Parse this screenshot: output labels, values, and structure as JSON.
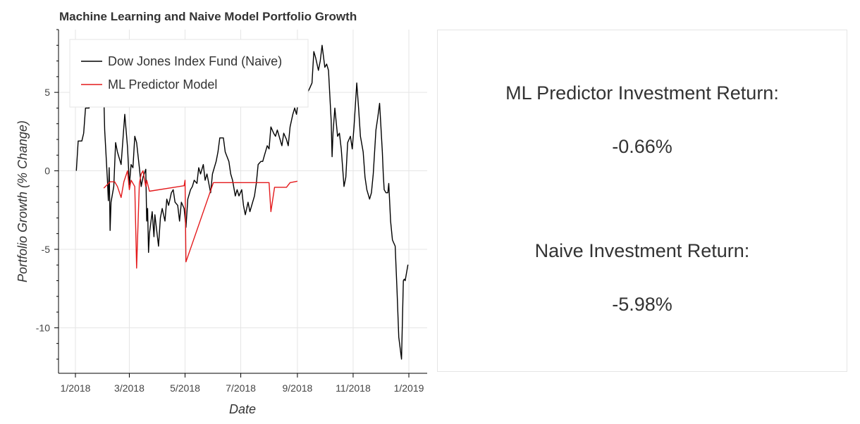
{
  "chart_data": {
    "type": "line",
    "title": "Machine Learning and Naive Model Portfolio Growth",
    "xlabel": "Date",
    "ylabel": "Portfolio Growth (% Change)",
    "xlim": [
      "2018-01-01",
      "2019-01-01"
    ],
    "ylim": [
      -12.9,
      9
    ],
    "x_ticks": [
      {
        "date": "2018-01-01",
        "label": "1/2018"
      },
      {
        "date": "2018-03-01",
        "label": "3/2018"
      },
      {
        "date": "2018-05-01",
        "label": "5/2018"
      },
      {
        "date": "2018-07-01",
        "label": "7/2018"
      },
      {
        "date": "2018-09-01",
        "label": "9/2018"
      },
      {
        "date": "2018-11-01",
        "label": "11/2018"
      },
      {
        "date": "2019-01-01",
        "label": "1/2019"
      }
    ],
    "y_ticks": [
      {
        "value": 5,
        "label": "5"
      },
      {
        "value": 0,
        "label": "0"
      },
      {
        "value": -5,
        "label": "-5"
      },
      {
        "value": -10,
        "label": "-10"
      }
    ],
    "grid": true,
    "legend_position": "top-left",
    "series": [
      {
        "name": "Dow Jones Index Fund (Naive)",
        "color": "#000000",
        "points": [
          [
            "2018-01-02",
            0.0
          ],
          [
            "2018-01-04",
            1.9
          ],
          [
            "2018-01-08",
            1.9
          ],
          [
            "2018-01-10",
            2.4
          ],
          [
            "2018-01-12",
            4.0
          ],
          [
            "2018-01-16",
            4.0
          ],
          [
            "2018-01-18",
            5.6
          ],
          [
            "2018-01-22",
            7.1
          ],
          [
            "2018-01-26",
            6.7
          ],
          [
            "2018-01-31",
            7.3
          ],
          [
            "2018-02-02",
            2.6
          ],
          [
            "2018-02-05",
            -0.6
          ],
          [
            "2018-02-06",
            -1.9
          ],
          [
            "2018-02-07",
            0.2
          ],
          [
            "2018-02-08",
            -3.8
          ],
          [
            "2018-02-09",
            -2.0
          ],
          [
            "2018-02-12",
            -1.0
          ],
          [
            "2018-02-14",
            1.8
          ],
          [
            "2018-02-16",
            1.2
          ],
          [
            "2018-02-20",
            0.4
          ],
          [
            "2018-02-22",
            2.0
          ],
          [
            "2018-02-24",
            3.6
          ],
          [
            "2018-02-27",
            1.5
          ],
          [
            "2018-03-01",
            -0.9
          ],
          [
            "2018-03-03",
            0.4
          ],
          [
            "2018-03-05",
            0.2
          ],
          [
            "2018-03-07",
            2.2
          ],
          [
            "2018-03-09",
            1.8
          ],
          [
            "2018-03-12",
            0.2
          ],
          [
            "2018-03-14",
            -1.0
          ],
          [
            "2018-03-16",
            -0.4
          ],
          [
            "2018-03-19",
            0.1
          ],
          [
            "2018-03-20",
            -3.2
          ],
          [
            "2018-03-21",
            -2.4
          ],
          [
            "2018-03-22",
            -5.2
          ],
          [
            "2018-03-23",
            -4.0
          ],
          [
            "2018-03-26",
            -2.6
          ],
          [
            "2018-03-28",
            -4.2
          ],
          [
            "2018-03-29",
            -2.8
          ],
          [
            "2018-04-02",
            -4.8
          ],
          [
            "2018-04-04",
            -3.0
          ],
          [
            "2018-04-06",
            -2.4
          ],
          [
            "2018-04-09",
            -3.2
          ],
          [
            "2018-04-11",
            -1.8
          ],
          [
            "2018-04-13",
            -2.2
          ],
          [
            "2018-04-16",
            -1.4
          ],
          [
            "2018-04-18",
            -1.2
          ],
          [
            "2018-04-20",
            -2.0
          ],
          [
            "2018-04-23",
            -2.2
          ],
          [
            "2018-04-25",
            -3.2
          ],
          [
            "2018-04-27",
            -2.0
          ],
          [
            "2018-04-30",
            -2.4
          ],
          [
            "2018-05-02",
            -3.6
          ],
          [
            "2018-05-04",
            -1.8
          ],
          [
            "2018-05-07",
            -1.2
          ],
          [
            "2018-05-09",
            -1.0
          ],
          [
            "2018-05-11",
            -0.6
          ],
          [
            "2018-05-14",
            -0.8
          ],
          [
            "2018-05-16",
            0.2
          ],
          [
            "2018-05-18",
            -0.2
          ],
          [
            "2018-05-21",
            0.4
          ],
          [
            "2018-05-23",
            -0.6
          ],
          [
            "2018-05-25",
            -0.2
          ],
          [
            "2018-05-29",
            -1.4
          ],
          [
            "2018-05-31",
            -0.2
          ],
          [
            "2018-06-04",
            0.6
          ],
          [
            "2018-06-06",
            1.2
          ],
          [
            "2018-06-08",
            2.1
          ],
          [
            "2018-06-12",
            2.1
          ],
          [
            "2018-06-14",
            1.2
          ],
          [
            "2018-06-18",
            0.6
          ],
          [
            "2018-06-20",
            -0.2
          ],
          [
            "2018-06-22",
            -0.6
          ],
          [
            "2018-06-25",
            -1.6
          ],
          [
            "2018-06-27",
            -1.2
          ],
          [
            "2018-06-29",
            -1.6
          ],
          [
            "2018-07-02",
            -1.2
          ],
          [
            "2018-07-04",
            -2.2
          ],
          [
            "2018-07-06",
            -2.8
          ],
          [
            "2018-07-09",
            -2.0
          ],
          [
            "2018-07-11",
            -2.6
          ],
          [
            "2018-07-13",
            -2.2
          ],
          [
            "2018-07-16",
            -1.6
          ],
          [
            "2018-07-18",
            -0.8
          ],
          [
            "2018-07-20",
            0.4
          ],
          [
            "2018-07-23",
            0.6
          ],
          [
            "2018-07-25",
            0.6
          ],
          [
            "2018-07-27",
            1.0
          ],
          [
            "2018-07-30",
            1.6
          ],
          [
            "2018-08-01",
            1.4
          ],
          [
            "2018-08-03",
            2.8
          ],
          [
            "2018-08-06",
            2.4
          ],
          [
            "2018-08-08",
            2.2
          ],
          [
            "2018-08-10",
            2.6
          ],
          [
            "2018-08-13",
            2.0
          ],
          [
            "2018-08-15",
            1.6
          ],
          [
            "2018-08-17",
            2.4
          ],
          [
            "2018-08-20",
            2.0
          ],
          [
            "2018-08-22",
            1.6
          ],
          [
            "2018-08-24",
            2.8
          ],
          [
            "2018-08-27",
            3.6
          ],
          [
            "2018-08-29",
            4.0
          ],
          [
            "2018-08-31",
            3.6
          ],
          [
            "2018-09-02",
            4.5
          ],
          [
            "2018-09-04",
            5.2
          ],
          [
            "2018-09-06",
            4.6
          ],
          [
            "2018-09-08",
            4.8
          ],
          [
            "2018-09-10",
            4.4
          ],
          [
            "2018-09-12",
            5.0
          ],
          [
            "2018-09-14",
            5.2
          ],
          [
            "2018-09-17",
            5.6
          ],
          [
            "2018-09-19",
            7.6
          ],
          [
            "2018-09-21",
            7.2
          ],
          [
            "2018-09-24",
            6.4
          ],
          [
            "2018-09-26",
            7.0
          ],
          [
            "2018-09-28",
            8.0
          ],
          [
            "2018-10-01",
            6.6
          ],
          [
            "2018-10-03",
            6.8
          ],
          [
            "2018-10-05",
            6.4
          ],
          [
            "2018-10-08",
            3.2
          ],
          [
            "2018-10-09",
            0.9
          ],
          [
            "2018-10-10",
            2.4
          ],
          [
            "2018-10-12",
            4.0
          ],
          [
            "2018-10-15",
            2.2
          ],
          [
            "2018-10-17",
            2.4
          ],
          [
            "2018-10-19",
            1.4
          ],
          [
            "2018-10-22",
            -1.0
          ],
          [
            "2018-10-24",
            -0.4
          ],
          [
            "2018-10-26",
            1.8
          ],
          [
            "2018-10-29",
            2.2
          ],
          [
            "2018-10-31",
            1.4
          ],
          [
            "2018-11-02",
            2.8
          ],
          [
            "2018-11-05",
            5.6
          ],
          [
            "2018-11-07",
            4.0
          ],
          [
            "2018-11-09",
            2.2
          ],
          [
            "2018-11-12",
            1.2
          ],
          [
            "2018-11-14",
            -0.4
          ],
          [
            "2018-11-16",
            -1.2
          ],
          [
            "2018-11-19",
            -1.8
          ],
          [
            "2018-11-21",
            -1.4
          ],
          [
            "2018-11-23",
            -0.2
          ],
          [
            "2018-11-26",
            2.6
          ],
          [
            "2018-11-28",
            3.4
          ],
          [
            "2018-11-30",
            4.3
          ],
          [
            "2018-12-03",
            1.2
          ],
          [
            "2018-12-04",
            -0.2
          ],
          [
            "2018-12-05",
            -1.2
          ],
          [
            "2018-12-07",
            -1.4
          ],
          [
            "2018-12-09",
            -1.4
          ],
          [
            "2018-12-10",
            -0.8
          ],
          [
            "2018-12-12",
            -3.2
          ],
          [
            "2018-12-14",
            -4.4
          ],
          [
            "2018-12-17",
            -4.8
          ],
          [
            "2018-12-19",
            -7.6
          ],
          [
            "2018-12-21",
            -10.6
          ],
          [
            "2018-12-24",
            -12.0
          ],
          [
            "2018-12-26",
            -7.0
          ],
          [
            "2018-12-27",
            -6.9
          ],
          [
            "2018-12-28",
            -7.0
          ],
          [
            "2018-12-31",
            -5.98
          ]
        ]
      },
      {
        "name": "ML Predictor Model",
        "color": "#e41a1c",
        "points": [
          [
            "2018-02-01",
            -1.1
          ],
          [
            "2018-02-08",
            -0.7
          ],
          [
            "2018-02-13",
            -0.7
          ],
          [
            "2018-02-16",
            -1.0
          ],
          [
            "2018-02-20",
            -1.7
          ],
          [
            "2018-02-23",
            -0.7
          ],
          [
            "2018-02-27",
            0.0
          ],
          [
            "2018-03-01",
            -1.2
          ],
          [
            "2018-03-03",
            -0.6
          ],
          [
            "2018-03-07",
            -1.0
          ],
          [
            "2018-03-09",
            -6.2
          ],
          [
            "2018-03-12",
            -0.8
          ],
          [
            "2018-03-14",
            -0.2
          ],
          [
            "2018-03-16",
            0.0
          ],
          [
            "2018-03-19",
            -1.0
          ],
          [
            "2018-03-20",
            -0.6
          ],
          [
            "2018-03-23",
            -1.3
          ],
          [
            "2018-04-30",
            -0.95
          ],
          [
            "2018-05-01",
            -0.6
          ],
          [
            "2018-05-02",
            -5.8
          ],
          [
            "2018-06-01",
            -0.75
          ],
          [
            "2018-08-01",
            -0.75
          ],
          [
            "2018-08-03",
            -2.6
          ],
          [
            "2018-08-07",
            -1.05
          ],
          [
            "2018-08-20",
            -1.05
          ],
          [
            "2018-08-24",
            -0.75
          ],
          [
            "2018-09-01",
            -0.66
          ]
        ]
      }
    ]
  },
  "results_panel": {
    "ml_label": "ML Predictor Investment Return:",
    "ml_value": "-0.66%",
    "naive_label": "Naive Investment Return:",
    "naive_value": "-5.98%"
  }
}
